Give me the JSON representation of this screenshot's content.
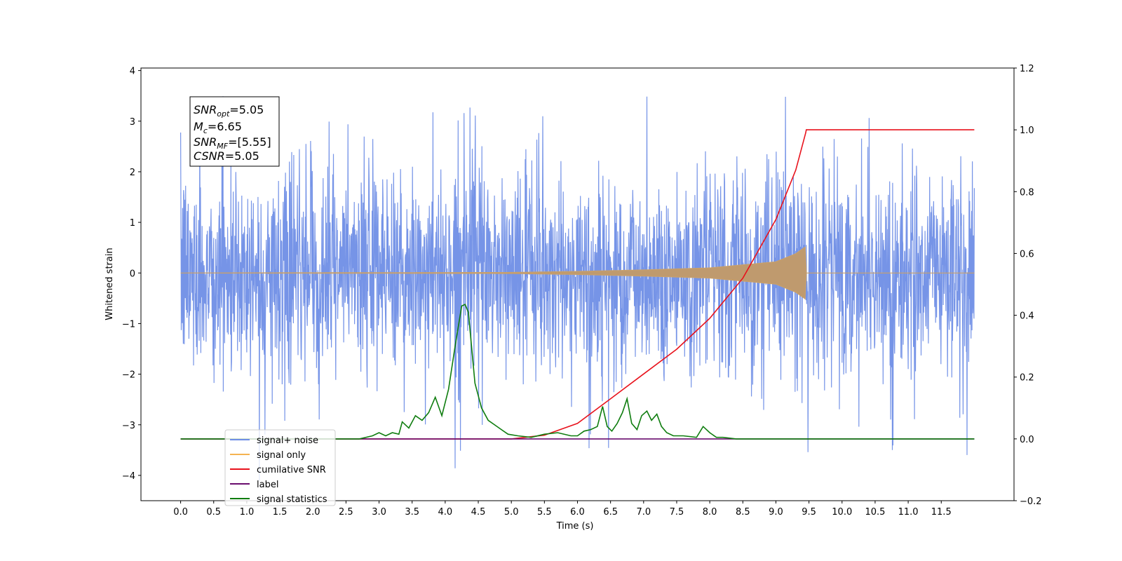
{
  "chart_data": {
    "type": "line",
    "xlabel": "Time (s)",
    "ylabel": "Whitened strain",
    "xlim": [
      -0.6,
      12.6
    ],
    "ylim": [
      -4.5,
      4.05
    ],
    "ylim_right": [
      -0.2,
      1.2
    ],
    "x_ticks": [
      "0.0",
      "0.5",
      "1.0",
      "1.5",
      "2.0",
      "2.5",
      "3.0",
      "3.5",
      "4.0",
      "4.5",
      "5.0",
      "5.5",
      "6.0",
      "6.5",
      "7.0",
      "7.5",
      "8.0",
      "8.5",
      "9.0",
      "9.5",
      "10.0",
      "10.5",
      "11.0",
      "11.5"
    ],
    "y_ticks": [
      "4",
      "3",
      "2",
      "1",
      "0",
      "−1",
      "−2",
      "−3",
      "−4"
    ],
    "y_ticks_values": [
      4,
      3,
      2,
      1,
      0,
      -1,
      -2,
      -3,
      -4
    ],
    "y_right_ticks": [
      "1.2",
      "1.0",
      "0.8",
      "0.6",
      "0.4",
      "0.2",
      "0.0",
      "−0.2"
    ],
    "y_right_ticks_values": [
      1.2,
      1.0,
      0.8,
      0.6,
      0.4,
      0.2,
      0.0,
      -0.2
    ],
    "annotation": {
      "line1": {
        "sym": "SNR",
        "sub": "opt",
        "val": "=5.05"
      },
      "line2": {
        "sym": "M",
        "sub": "c",
        "val": "=6.65"
      },
      "line3": {
        "sym": "SNR",
        "sub": "MF",
        "val": "=[5.55]"
      },
      "line4": {
        "sym": "CSNR",
        "sub": "",
        "val": "=5.05"
      }
    },
    "legend": [
      "signal+ noise",
      "signal only",
      "cumilative SNR",
      "label",
      "signal statistics"
    ],
    "legend_placement": "lower-left",
    "series": [
      {
        "name": "signal+ noise",
        "color": "#6f8ee6",
        "axis": "left",
        "note_values": "noise with amplitude ~ ±2.5, spikes to 3.6 / -4.1",
        "t_range": [
          0,
          12
        ]
      },
      {
        "name": "signal only",
        "color": "#f5b352",
        "axis": "left",
        "envelope": {
          "t": [
            0,
            5.0,
            6.0,
            7.0,
            8.0,
            9.0,
            9.3,
            9.45
          ],
          "amp": [
            0.0,
            0.01,
            0.03,
            0.06,
            0.1,
            0.22,
            0.38,
            0.52
          ]
        }
      },
      {
        "name": "cumilative SNR",
        "color": "#e8121c",
        "axis": "right",
        "x": [
          0,
          5.0,
          5.5,
          6.0,
          6.5,
          7.0,
          7.5,
          8.0,
          8.5,
          9.0,
          9.3,
          9.45,
          9.46,
          12.0
        ],
        "y": [
          0.0,
          0.0,
          0.012,
          0.05,
          0.13,
          0.21,
          0.29,
          0.39,
          0.52,
          0.71,
          0.87,
          0.99,
          1.0,
          1.0
        ]
      },
      {
        "name": "label",
        "color": "#6a0d6e",
        "axis": "right",
        "x": [
          0,
          12.0
        ],
        "y": [
          0.0,
          0.0
        ]
      },
      {
        "name": "signal statistics",
        "color": "#0f7d0f",
        "axis": "right",
        "x": [
          0,
          2.7,
          2.9,
          3.0,
          3.1,
          3.2,
          3.3,
          3.35,
          3.45,
          3.55,
          3.65,
          3.75,
          3.85,
          3.95,
          4.05,
          4.15,
          4.25,
          4.3,
          4.35,
          4.45,
          4.55,
          4.65,
          4.75,
          4.85,
          4.95,
          5.1,
          5.3,
          5.5,
          5.7,
          5.9,
          6.0,
          6.1,
          6.2,
          6.3,
          6.38,
          6.45,
          6.52,
          6.6,
          6.68,
          6.75,
          6.82,
          6.9,
          6.97,
          7.05,
          7.12,
          7.2,
          7.27,
          7.35,
          7.45,
          7.6,
          7.8,
          7.9,
          8.0,
          8.1,
          8.2,
          8.4,
          8.6,
          8.8,
          12.0
        ],
        "y": [
          0.0,
          0.0,
          0.01,
          0.02,
          0.01,
          0.02,
          0.015,
          0.055,
          0.035,
          0.075,
          0.06,
          0.085,
          0.135,
          0.075,
          0.16,
          0.3,
          0.43,
          0.435,
          0.41,
          0.18,
          0.1,
          0.06,
          0.045,
          0.03,
          0.015,
          0.01,
          0.005,
          0.015,
          0.02,
          0.01,
          0.01,
          0.025,
          0.03,
          0.04,
          0.105,
          0.04,
          0.025,
          0.05,
          0.085,
          0.13,
          0.05,
          0.03,
          0.075,
          0.09,
          0.06,
          0.08,
          0.04,
          0.02,
          0.01,
          0.01,
          0.005,
          0.04,
          0.02,
          0.005,
          0.005,
          0.0,
          0.0,
          0.0,
          0.0
        ]
      }
    ]
  }
}
